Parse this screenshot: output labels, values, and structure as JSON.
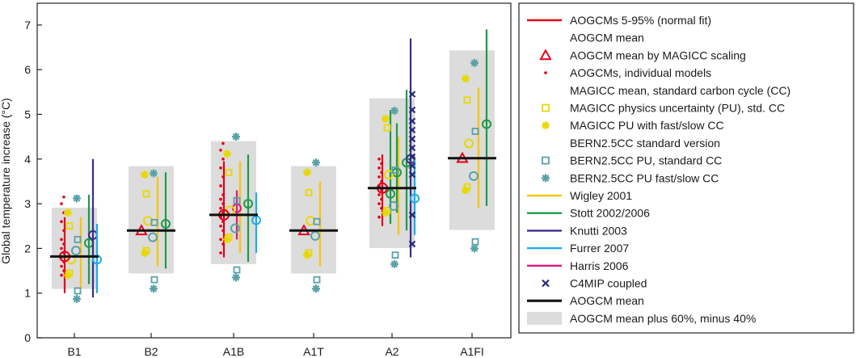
{
  "chart_data": {
    "type": "scatter",
    "title": "",
    "xlabel": "",
    "ylabel": "Global temperature increase (°C)",
    "ylim": [
      0,
      7.5
    ],
    "yticks": [
      0,
      1,
      2,
      3,
      4,
      5,
      6,
      7
    ],
    "categories": [
      "B1",
      "B2",
      "A1B",
      "A1T",
      "A2",
      "A1FI"
    ],
    "legend_position": "right",
    "colors": {
      "aogcm_red": "#e3001b",
      "magicc_yellow": "#e8d800",
      "bern_teal": "#5aa1a8",
      "wigley": "#f5c518",
      "stott": "#1e9a47",
      "knutti": "#3a2e8e",
      "furrer": "#1eaaea",
      "harris": "#e0177d",
      "c4mip": "#2a2a7a",
      "mean": "#111111",
      "band": "#dcdcdc"
    },
    "legend": [
      {
        "key": "aogcm_range",
        "label": "AOGCMs 5-95% (normal fit)",
        "symbol": "line",
        "color": "#e3001b"
      },
      {
        "key": "aogcm_mean",
        "label": "AOGCM mean",
        "symbol": "circle",
        "color": "#e3001b"
      },
      {
        "key": "aogcm_magicc",
        "label": "AOGCM mean by MAGICC scaling",
        "symbol": "triangle",
        "color": "#e3001b"
      },
      {
        "key": "aogcm_models",
        "label": "AOGCMs, individual models",
        "symbol": "dot",
        "color": "#e3001b"
      },
      {
        "key": "magicc_mean",
        "label": "MAGICC mean, standard carbon cycle (CC)",
        "symbol": "circle",
        "color": "#e8d800"
      },
      {
        "key": "magicc_pu",
        "label": "MAGICC physics uncertainty (PU), std. CC",
        "symbol": "square",
        "color": "#e8d800"
      },
      {
        "key": "magicc_pu_fs",
        "label": "MAGICC PU with fast/slow CC",
        "symbol": "star",
        "color": "#e8d800"
      },
      {
        "key": "bern_std",
        "label": "BERN2.5CC standard version",
        "symbol": "circle",
        "color": "#5aa1a8"
      },
      {
        "key": "bern_pu",
        "label": "BERN2.5CC PU, standard CC",
        "symbol": "square",
        "color": "#5aa1a8"
      },
      {
        "key": "bern_pu_fs",
        "label": "BERN2.5CC PU fast/slow CC",
        "symbol": "star",
        "color": "#5aa1a8"
      },
      {
        "key": "wigley",
        "label": "Wigley 2001",
        "symbol": "line",
        "color": "#f5c518"
      },
      {
        "key": "stott",
        "label": "Stott 2002/2006",
        "symbol": "line",
        "color": "#1e9a47"
      },
      {
        "key": "knutti",
        "label": "Knutti 2003",
        "symbol": "line",
        "color": "#3a2e8e"
      },
      {
        "key": "furrer",
        "label": "Furrer 2007",
        "symbol": "line",
        "color": "#1eaaea"
      },
      {
        "key": "harris",
        "label": "Harris 2006",
        "symbol": "line",
        "color": "#e0177d"
      },
      {
        "key": "c4mip",
        "label": "C4MIP coupled",
        "symbol": "cross",
        "color": "#2a2a7a"
      },
      {
        "key": "mean_line",
        "label": "AOGCM mean",
        "symbol": "thickline",
        "color": "#111111"
      },
      {
        "key": "band",
        "label": "AOGCM mean plus 60%, minus 40%",
        "symbol": "box",
        "color": "#dcdcdc"
      }
    ],
    "scenarios": [
      {
        "name": "B1",
        "mean": 1.82,
        "aogcm_range": [
          1.0,
          2.7
        ],
        "aogcm_mean": 1.82,
        "aogcm_models": [
          1.4,
          1.5,
          1.6,
          1.7,
          1.8,
          1.9,
          2.0,
          2.1,
          2.2,
          2.4,
          2.6,
          2.8,
          3.0,
          3.15
        ],
        "magicc_mean": 1.75,
        "magicc_pu": [
          1.45,
          2.5
        ],
        "magicc_pu_fs": [
          1.4,
          2.8
        ],
        "bern_std": 1.95,
        "bern_pu": [
          1.05,
          2.2
        ],
        "bern_pu_fs": [
          0.87,
          3.12
        ],
        "wigley": [
          1.1,
          2.7
        ],
        "stott": {
          "range": [
            1.2,
            3.2
          ],
          "mean": 2.12
        },
        "knutti": {
          "range": [
            0.9,
            4.0
          ],
          "mean": 2.3
        },
        "furrer": {
          "range": [
            1.0,
            2.55
          ],
          "mean": 1.75
        }
      },
      {
        "name": "B2",
        "mean": 2.4,
        "aogcm_magicc": 2.4,
        "magicc_mean": 2.62,
        "magicc_pu": [
          1.95,
          3.22
        ],
        "magicc_pu_fs": [
          1.9,
          3.65
        ],
        "bern_std": 2.25,
        "bern_pu": [
          1.3,
          2.58
        ],
        "bern_pu_fs": [
          1.1,
          3.68
        ],
        "wigley": [
          1.6,
          3.6
        ],
        "stott": {
          "range": [
            1.55,
            3.7
          ],
          "mean": 2.55
        }
      },
      {
        "name": "A1B",
        "mean": 2.75,
        "aogcm_range": [
          1.8,
          3.95
        ],
        "aogcm_mean": 2.75,
        "aogcm_models": [
          1.9,
          2.1,
          2.2,
          2.4,
          2.5,
          2.6,
          2.7,
          2.8,
          2.9,
          3.0,
          3.1,
          3.2,
          3.4,
          3.6,
          3.8,
          4.0,
          4.2,
          4.35
        ],
        "magicc_mean": 2.85,
        "magicc_pu": [
          2.25,
          3.7
        ],
        "magicc_pu_fs": [
          2.2,
          4.12
        ],
        "bern_std": 2.45,
        "bern_pu": [
          1.52,
          3.07
        ],
        "bern_pu_fs": [
          1.35,
          4.5
        ],
        "wigley": [
          1.9,
          3.95
        ],
        "stott": {
          "range": [
            1.7,
            4.1
          ],
          "mean": 3.0
        },
        "furrer": {
          "range": [
            1.9,
            3.25
          ],
          "mean": 2.63
        },
        "harris": {
          "range": [
            2.2,
            3.3
          ],
          "mean": 2.9
        }
      },
      {
        "name": "A1T",
        "mean": 2.4,
        "aogcm_magicc": 2.4,
        "magicc_mean": 2.62,
        "magicc_pu": [
          1.9,
          3.25
        ],
        "magicc_pu_fs": [
          1.85,
          3.7
        ],
        "bern_std": 2.28,
        "bern_pu": [
          1.3,
          2.6
        ],
        "bern_pu_fs": [
          1.1,
          3.92
        ],
        "wigley": [
          1.6,
          3.5
        ]
      },
      {
        "name": "A2",
        "mean": 3.35,
        "aogcm_range": [
          2.5,
          4.1
        ],
        "aogcm_mean": 3.35,
        "aogcm_models": [
          2.7,
          2.9,
          3.0,
          3.1,
          3.2,
          3.3,
          3.4,
          3.5,
          3.6,
          3.7,
          3.8,
          3.9,
          4.0
        ],
        "magicc_mean": 3.65,
        "magicc_pu": [
          2.85,
          4.7
        ],
        "magicc_pu_fs": [
          2.8,
          4.9
        ],
        "bern_std": 2.95,
        "bern_pu": [
          1.85,
          3.75
        ],
        "bern_pu_fs": [
          1.65,
          5.08
        ],
        "wigley": [
          2.3,
          4.5
        ],
        "stott": {
          "range": [
            2.4,
            5.55
          ],
          "mean": 3.92
        },
        "knutti": {
          "range": [
            1.8,
            6.7
          ],
          "mean": 4.0
        },
        "furrer": {
          "range": [
            2.3,
            4.0
          ],
          "mean": 3.12
        },
        "stott2": {
          "range": [
            2.55,
            5.1
          ],
          "mean": 3.22
        },
        "stott3": {
          "range": [
            2.8,
            4.8
          ],
          "mean": 3.7
        },
        "c4mip": [
          2.1,
          2.75,
          3.65,
          3.85,
          4.05,
          4.25,
          4.45,
          4.65,
          4.85,
          5.1,
          5.45
        ]
      },
      {
        "name": "A1FI",
        "mean": 4.02,
        "aogcm_magicc": 4.02,
        "magicc_mean": 4.35,
        "magicc_pu": [
          3.38,
          5.32
        ],
        "magicc_pu_fs": [
          3.3,
          5.8
        ],
        "bern_std": 3.62,
        "bern_pu": [
          2.15,
          4.62
        ],
        "bern_pu_fs": [
          2.0,
          6.15
        ],
        "wigley": [
          2.9,
          5.6
        ],
        "stott": {
          "range": [
            2.95,
            6.9
          ],
          "mean": 4.78
        }
      }
    ]
  }
}
